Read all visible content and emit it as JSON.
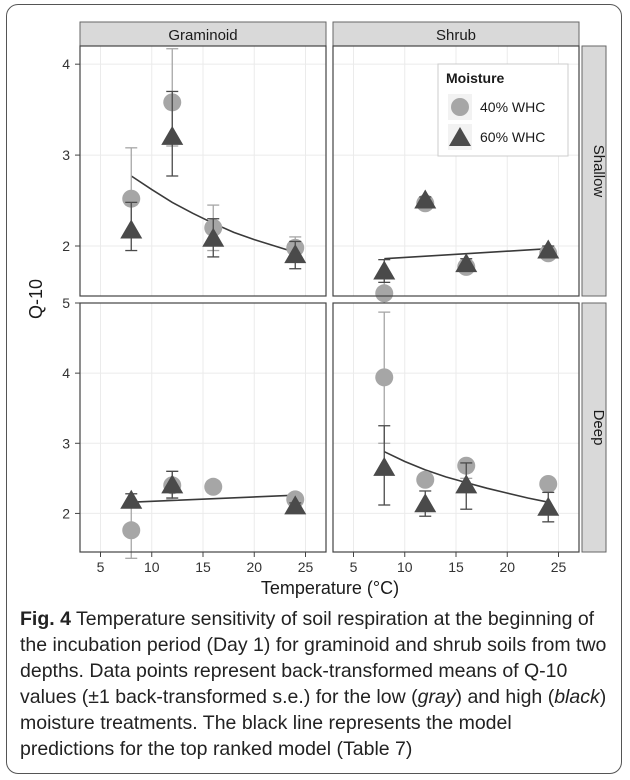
{
  "chart_data": {
    "type": "scatter",
    "xlabel": "Temperature (°C)",
    "ylabel": "Q-10",
    "xlim": [
      3,
      27
    ],
    "x_ticks": [
      "5",
      "10",
      "15",
      "20",
      "25"
    ],
    "columns": [
      "Graminoid",
      "Shrub"
    ],
    "rows": [
      "Shallow",
      "Deep"
    ],
    "rows_ylim": [
      [
        1.45,
        4.2
      ],
      [
        1.45,
        5.0
      ]
    ],
    "rows_y_ticks": [
      [
        "2",
        "3",
        "4"
      ],
      [
        "2",
        "3",
        "4",
        "5"
      ]
    ],
    "grid": true,
    "legend": {
      "title": "Moisture",
      "placement": "top-right (Shrub / Shallow panel)",
      "entries": [
        {
          "label": "40% WHC",
          "shape": "circle",
          "color": "#a6a6a6"
        },
        {
          "label": "60% WHC",
          "shape": "triangle",
          "color": "#4a4a4a"
        }
      ]
    },
    "panels": [
      {
        "column": "Graminoid",
        "row": "Shallow",
        "series": [
          {
            "name": "40% WHC",
            "points": [
              {
                "x": 8,
                "y": 2.52,
                "lo": 2.1,
                "hi": 3.08
              },
              {
                "x": 12,
                "y": 3.58,
                "lo": 3.1,
                "hi": 4.17
              },
              {
                "x": 16,
                "y": 2.2,
                "lo": 1.95,
                "hi": 2.45
              },
              {
                "x": 24,
                "y": 1.98,
                "lo": 1.85,
                "hi": 2.1
              }
            ]
          },
          {
            "name": "60% WHC",
            "points": [
              {
                "x": 8,
                "y": 2.17,
                "lo": 1.95,
                "hi": 2.48
              },
              {
                "x": 12,
                "y": 3.2,
                "lo": 2.77,
                "hi": 3.7
              },
              {
                "x": 16,
                "y": 2.08,
                "lo": 1.88,
                "hi": 2.3
              },
              {
                "x": 24,
                "y": 1.9,
                "lo": 1.75,
                "hi": 2.05
              }
            ]
          }
        ],
        "model_line": [
          {
            "x": 8,
            "y": 2.77
          },
          {
            "x": 10,
            "y": 2.62
          },
          {
            "x": 12,
            "y": 2.48
          },
          {
            "x": 14,
            "y": 2.36
          },
          {
            "x": 16,
            "y": 2.25
          },
          {
            "x": 18,
            "y": 2.15
          },
          {
            "x": 20,
            "y": 2.07
          },
          {
            "x": 22,
            "y": 2.0
          },
          {
            "x": 24,
            "y": 1.93
          }
        ]
      },
      {
        "column": "Shrub",
        "row": "Shallow",
        "series": [
          {
            "name": "40% WHC",
            "points": [
              {
                "x": 8,
                "y": 1.48,
                "lo": 1.3,
                "hi": 1.66
              },
              {
                "x": 12,
                "y": 2.47,
                "lo": 2.43,
                "hi": 2.51
              },
              {
                "x": 16,
                "y": 1.77,
                "lo": 1.73,
                "hi": 1.81
              },
              {
                "x": 24,
                "y": 1.92,
                "lo": 1.88,
                "hi": 1.96
              }
            ]
          },
          {
            "name": "60% WHC",
            "points": [
              {
                "x": 8,
                "y": 1.72,
                "lo": 1.6,
                "hi": 1.85
              },
              {
                "x": 12,
                "y": 2.5,
                "lo": 2.46,
                "hi": 2.54
              },
              {
                "x": 16,
                "y": 1.8,
                "lo": 1.74,
                "hi": 1.86
              },
              {
                "x": 24,
                "y": 1.95,
                "lo": 1.9,
                "hi": 2.0
              }
            ]
          }
        ],
        "model_line": [
          {
            "x": 8,
            "y": 1.86
          },
          {
            "x": 24,
            "y": 1.97
          }
        ]
      },
      {
        "column": "Graminoid",
        "row": "Deep",
        "series": [
          {
            "name": "40% WHC",
            "points": [
              {
                "x": 8,
                "y": 1.76,
                "lo": 1.36,
                "hi": 2.16
              },
              {
                "x": 12,
                "y": 2.4,
                "lo": 2.2,
                "hi": 2.6
              },
              {
                "x": 16,
                "y": 2.38,
                "lo": 2.34,
                "hi": 2.42
              },
              {
                "x": 24,
                "y": 2.2,
                "lo": 2.12,
                "hi": 2.28
              }
            ]
          },
          {
            "name": "60% WHC",
            "points": [
              {
                "x": 8,
                "y": 2.18,
                "lo": 2.08,
                "hi": 2.28
              },
              {
                "x": 12,
                "y": 2.4,
                "lo": 2.22,
                "hi": 2.6
              },
              {
                "x": 24,
                "y": 2.1,
                "lo": 2.05,
                "hi": 2.15
              }
            ]
          }
        ],
        "model_line": [
          {
            "x": 8,
            "y": 2.16
          },
          {
            "x": 24,
            "y": 2.26
          }
        ]
      },
      {
        "column": "Shrub",
        "row": "Deep",
        "series": [
          {
            "name": "40% WHC",
            "points": [
              {
                "x": 8,
                "y": 3.94,
                "lo": 3.0,
                "hi": 4.87
              },
              {
                "x": 12,
                "y": 2.48,
                "lo": 2.44,
                "hi": 2.52
              },
              {
                "x": 16,
                "y": 2.68,
                "lo": 2.5,
                "hi": 2.72
              },
              {
                "x": 24,
                "y": 2.42,
                "lo": 2.38,
                "hi": 2.46
              }
            ]
          },
          {
            "name": "60% WHC",
            "points": [
              {
                "x": 8,
                "y": 2.65,
                "lo": 2.12,
                "hi": 3.25
              },
              {
                "x": 12,
                "y": 2.13,
                "lo": 1.96,
                "hi": 2.32
              },
              {
                "x": 16,
                "y": 2.4,
                "lo": 2.06,
                "hi": 2.72
              },
              {
                "x": 24,
                "y": 2.08,
                "lo": 1.88,
                "hi": 2.3
              }
            ]
          }
        ],
        "model_line": [
          {
            "x": 8,
            "y": 2.88
          },
          {
            "x": 10,
            "y": 2.74
          },
          {
            "x": 12,
            "y": 2.62
          },
          {
            "x": 14,
            "y": 2.52
          },
          {
            "x": 16,
            "y": 2.44
          },
          {
            "x": 18,
            "y": 2.36
          },
          {
            "x": 20,
            "y": 2.29
          },
          {
            "x": 22,
            "y": 2.22
          },
          {
            "x": 24,
            "y": 2.16
          }
        ]
      }
    ]
  },
  "caption": {
    "label": "Fig. 4",
    "text_1": " Temperature sensitivity of soil respiration at the beginning of the incubation period (Day 1) for graminoid and shrub soils from two depths. Data points represent back-transformed means of Q-10 values (±1 back-transformed s.e.) for the low (",
    "gray_word": "gray",
    "text_2": ") and high (",
    "black_word": "black",
    "text_3": ") moisture treatments. The black line represents the model predictions for the top ranked model (Table 7)"
  }
}
